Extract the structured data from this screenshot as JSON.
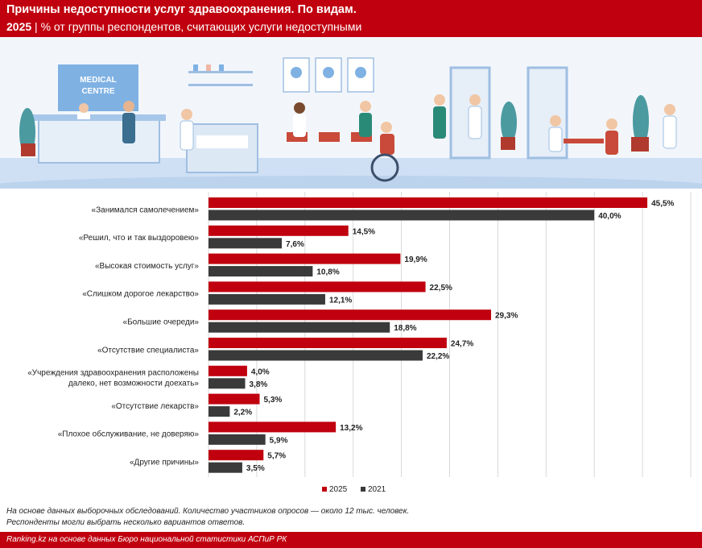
{
  "header": {
    "title": "Причины недоступности услуг здравоохранения. По видам.",
    "year": "2025",
    "separator": "|",
    "subtitle": "% от группы респондентов, считающих услуги недоступными"
  },
  "illustration": {
    "sign_line1": "MEDICAL",
    "sign_line2": "CENTRE"
  },
  "colors": {
    "brand_red": "#c0000e",
    "series_2025": "#c0000e",
    "series_2021": "#3a3a3a"
  },
  "chart_data": {
    "type": "bar",
    "orientation": "horizontal",
    "categories": [
      "«Занимался самолечением»",
      "«Решил, что и так выздоровею»",
      "«Высокая стоимость услуг»",
      "«Слишком дорогое лекарство»",
      "«Большие очереди»",
      "«Отсутствие специалиста»",
      "«Учреждения здравоохранения расположены далеко, нет возможности доехать»",
      "«Отсутствие лекарств»",
      "«Плохое обслуживание, не доверяю»",
      "«Другие причины»"
    ],
    "category_lines": [
      [
        "«Занимался самолечением»"
      ],
      [
        "«Решил, что и так выздоровею»"
      ],
      [
        "«Высокая стоимость услуг»"
      ],
      [
        "«Слишком дорогое лекарство»"
      ],
      [
        "«Большие очереди»"
      ],
      [
        "«Отсутствие специалиста»"
      ],
      [
        "«Учреждения здравоохранения расположены",
        "далеко, нет возможности доехать»"
      ],
      [
        "«Отсутствие лекарств»"
      ],
      [
        "«Плохое обслуживание, не доверяю»"
      ],
      [
        "«Другие причины»"
      ]
    ],
    "series": [
      {
        "name": "2025",
        "color": "#c0000e",
        "values": [
          45.5,
          14.5,
          19.9,
          22.5,
          29.3,
          24.7,
          4.0,
          5.3,
          13.2,
          5.7
        ],
        "labels": [
          "45,5%",
          "14,5%",
          "19,9%",
          "22,5%",
          "29,3%",
          "24,7%",
          "4,0%",
          "5,3%",
          "13,2%",
          "5,7%"
        ]
      },
      {
        "name": "2021",
        "color": "#3a3a3a",
        "values": [
          40.0,
          7.6,
          10.8,
          12.1,
          18.8,
          22.2,
          3.8,
          2.2,
          5.9,
          3.5
        ],
        "labels": [
          "40,0%",
          "7,6%",
          "10,8%",
          "12,1%",
          "18,8%",
          "22,2%",
          "3,8%",
          "2,2%",
          "5,9%",
          "3,5%"
        ]
      }
    ],
    "xlim": [
      0,
      50
    ],
    "grid": true,
    "legend": "bottom"
  },
  "notes": {
    "line1": "На основе данных выборочных обследований. Количество участников опросов — около 12 тыс. человек.",
    "line2": "Респонденты могли выбрать несколько вариантов ответов."
  },
  "footer": {
    "source": "Ranking.kz на основе данных Бюро национальной статистики АСПиР РК"
  }
}
